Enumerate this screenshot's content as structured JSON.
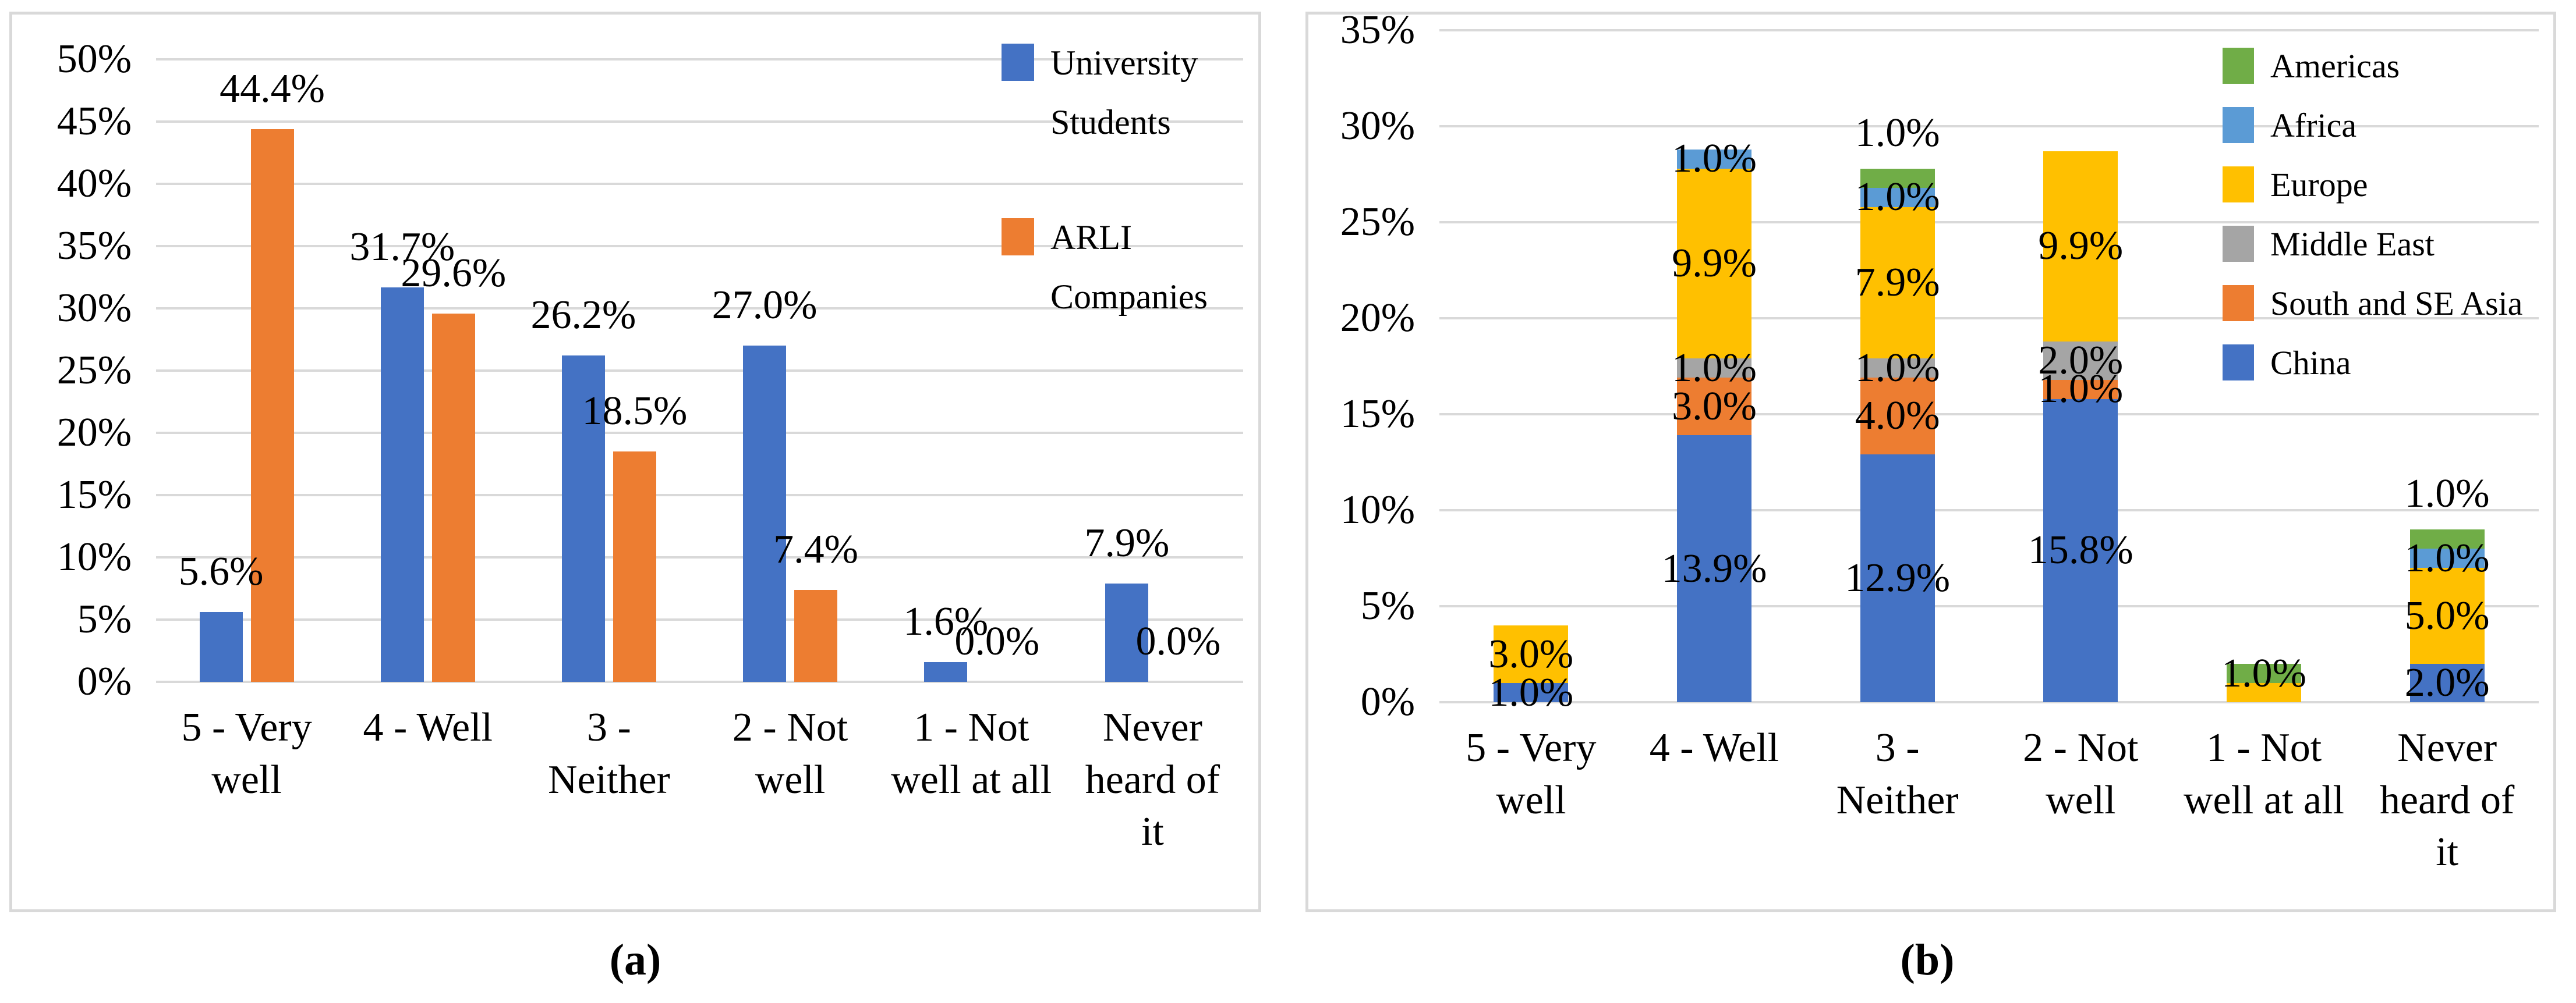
{
  "figure": {
    "captions": {
      "a": "(a)",
      "b": "(b)"
    }
  },
  "palette": {
    "blue": "#4472C4",
    "orange": "#ED7D31",
    "yellow": "#FFC000",
    "gray": "#A5A5A5",
    "green": "#70AD47",
    "lightblue": "#5B9BD5",
    "gridline": "#D9D9D9",
    "border": "#D9D9D9",
    "text": "#000000"
  },
  "chart_data": [
    {
      "id": "a",
      "type": "bar",
      "caption": "(a)",
      "categories": [
        "5 - Very well",
        "4 - Well",
        "3 - Neither",
        "2 - Not well",
        "1 - Not well at all",
        "Never heard of it"
      ],
      "series": [
        {
          "name": "University Students",
          "color_key": "blue",
          "values": [
            5.6,
            31.7,
            26.2,
            27.0,
            1.6,
            7.9
          ],
          "labels": [
            "5.6%",
            "31.7%",
            "26.2%",
            "27.0%",
            "1.6%",
            "7.9%"
          ]
        },
        {
          "name": "ARLI Companies",
          "color_key": "orange",
          "values": [
            44.4,
            29.6,
            18.5,
            7.4,
            0.0,
            0.0
          ],
          "labels": [
            "44.4%",
            "29.6%",
            "18.5%",
            "7.4%",
            "0.0%",
            "0.0%"
          ]
        }
      ],
      "ylim": [
        0,
        50
      ],
      "ytick_step": 5,
      "yticks": [
        "0%",
        "5%",
        "10%",
        "15%",
        "20%",
        "25%",
        "30%",
        "35%",
        "40%",
        "45%",
        "50%"
      ],
      "grid": true,
      "legend_position": "top-right",
      "legend": {
        "items": [
          {
            "label": "University Students",
            "color_key": "blue"
          },
          {
            "label": "ARLI Companies",
            "color_key": "orange"
          }
        ]
      }
    },
    {
      "id": "b",
      "type": "stacked-bar",
      "caption": "(b)",
      "categories": [
        "5 - Very well",
        "4 - Well",
        "3 - Neither",
        "2 - Not well",
        "1 - Not well at all",
        "Never heard of it"
      ],
      "ylim": [
        0,
        35
      ],
      "ytick_step": 5,
      "yticks": [
        "0%",
        "5%",
        "10%",
        "15%",
        "20%",
        "25%",
        "30%",
        "35%"
      ],
      "grid": true,
      "legend_position": "top-right",
      "legend": {
        "items": [
          {
            "label": "Americas",
            "color_key": "green"
          },
          {
            "label": "Africa",
            "color_key": "lightblue"
          },
          {
            "label": "Europe",
            "color_key": "yellow"
          },
          {
            "label": "Middle East",
            "color_key": "gray"
          },
          {
            "label": "South and SE Asia",
            "color_key": "orange"
          },
          {
            "label": "China",
            "color_key": "blue"
          }
        ]
      },
      "bars": [
        {
          "category": "5 - Very well",
          "segments": [
            {
              "series": "China",
              "color_key": "blue",
              "value": 1.0,
              "label": "1.0%",
              "label_pos": "center"
            },
            {
              "series": "Europe",
              "color_key": "yellow",
              "value": 3.0,
              "label": "3.0%",
              "label_pos": "center"
            }
          ]
        },
        {
          "category": "4 - Well",
          "segments": [
            {
              "series": "China",
              "color_key": "blue",
              "value": 13.9,
              "label": "13.9%",
              "label_pos": "center"
            },
            {
              "series": "South and SE Asia",
              "color_key": "orange",
              "value": 3.0,
              "label": "3.0%",
              "label_pos": "center"
            },
            {
              "series": "Middle East",
              "color_key": "gray",
              "value": 1.0,
              "label": "1.0%",
              "label_pos": "center"
            },
            {
              "series": "Europe",
              "color_key": "yellow",
              "value": 9.9,
              "label": "9.9%",
              "label_pos": "center"
            },
            {
              "series": "Africa",
              "color_key": "lightblue",
              "value": 1.0,
              "label": "1.0%",
              "label_pos": "center"
            }
          ]
        },
        {
          "category": "3 - Neither",
          "segments": [
            {
              "series": "China",
              "color_key": "blue",
              "value": 12.9,
              "label": "12.9%",
              "label_pos": "center"
            },
            {
              "series": "South and SE Asia",
              "color_key": "orange",
              "value": 4.0,
              "label": "4.0%",
              "label_pos": "center"
            },
            {
              "series": "Middle East",
              "color_key": "gray",
              "value": 1.0,
              "label": "1.0%",
              "label_pos": "center"
            },
            {
              "series": "Europe",
              "color_key": "yellow",
              "value": 7.9,
              "label": "7.9%",
              "label_pos": "center"
            },
            {
              "series": "Africa",
              "color_key": "lightblue",
              "value": 1.0,
              "label": "1.0%",
              "label_pos": "center"
            },
            {
              "series": "Americas",
              "color_key": "green",
              "value": 1.0,
              "label": "1.0%",
              "label_pos": "above"
            }
          ]
        },
        {
          "category": "2 - Not well",
          "segments": [
            {
              "series": "China",
              "color_key": "blue",
              "value": 15.8,
              "label": "15.8%",
              "label_pos": "center"
            },
            {
              "series": "South and SE Asia",
              "color_key": "orange",
              "value": 1.0,
              "label": "1.0%",
              "label_pos": "center"
            },
            {
              "series": "Middle East",
              "color_key": "gray",
              "value": 2.0,
              "label": "2.0%",
              "label_pos": "center"
            },
            {
              "series": "Europe",
              "color_key": "yellow",
              "value": 9.9,
              "label": "9.9%",
              "label_pos": "center"
            }
          ]
        },
        {
          "category": "1 - Not well at all",
          "segments": [
            {
              "series": "Europe",
              "color_key": "yellow",
              "value": 1.0,
              "label": "",
              "label_pos": "center"
            },
            {
              "series": "Americas",
              "color_key": "green",
              "value": 1.0,
              "label": "1.0%",
              "label_pos": "center"
            }
          ]
        },
        {
          "category": "Never heard of it",
          "segments": [
            {
              "series": "China",
              "color_key": "blue",
              "value": 2.0,
              "label": "2.0%",
              "label_pos": "center"
            },
            {
              "series": "Europe",
              "color_key": "yellow",
              "value": 5.0,
              "label": "5.0%",
              "label_pos": "center"
            },
            {
              "series": "Africa",
              "color_key": "lightblue",
              "value": 1.0,
              "label": "1.0%",
              "label_pos": "center"
            },
            {
              "series": "Americas",
              "color_key": "green",
              "value": 1.0,
              "label": "1.0%",
              "label_pos": "above"
            }
          ]
        }
      ]
    }
  ]
}
